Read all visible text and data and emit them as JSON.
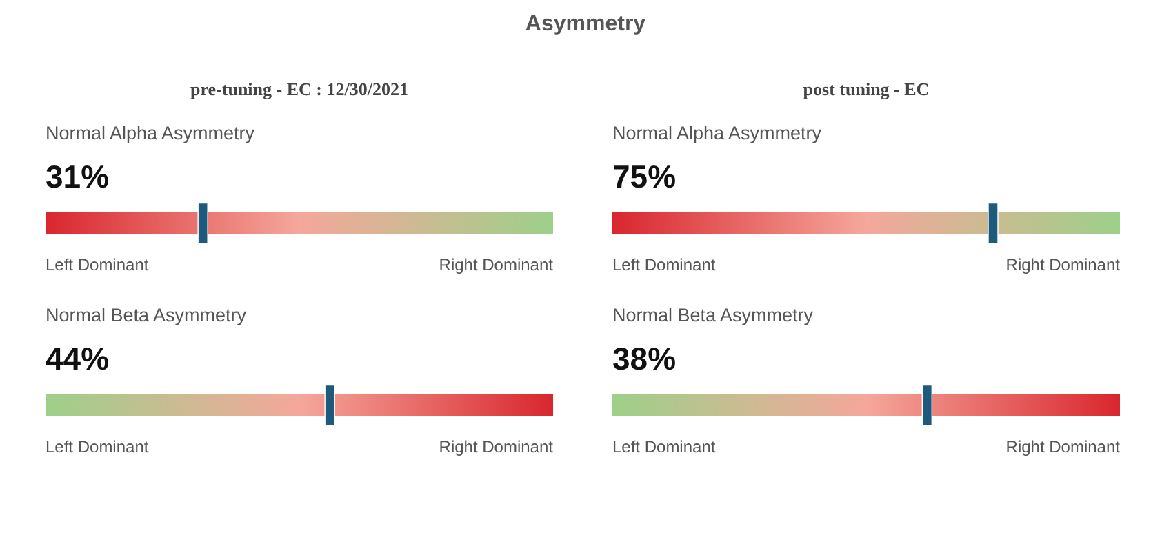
{
  "chart_data": [
    {
      "type": "other",
      "title": "Asymmetry",
      "subtitle": "pre-tuning - EC : 12/30/2021",
      "categories": [
        "Normal Alpha Asymmetry"
      ],
      "values": [
        31
      ],
      "value_labels": [
        "31%"
      ],
      "color": "#1d5a7c",
      "annotations": [
        "Left Dominant",
        "Right Dominant"
      ]
    },
    {
      "type": "other",
      "subtitle": "post tuning - EC",
      "categories": [
        "Normal Alpha Asymmetry"
      ],
      "values": [
        75
      ],
      "value_labels": [
        "75%"
      ],
      "color": "#1d5a7c",
      "annotations": [
        "Left Dominant",
        "Right Dominant"
      ]
    },
    {
      "type": "other",
      "categories": [
        "Normal Beta Asymmetry"
      ],
      "values": [
        44
      ],
      "value_labels": [
        "44%"
      ],
      "color": "#1d5a7c",
      "annotations": [
        "Left Dominant",
        "Right Dominant"
      ]
    },
    {
      "type": "other",
      "categories": [
        "Normal Beta Asymmetry"
      ],
      "values": [
        38
      ],
      "value_labels": [
        "38%"
      ],
      "color": "#1d5a7c",
      "annotations": [
        "Left Dominant",
        "Right Dominant"
      ]
    }
  ]
}
